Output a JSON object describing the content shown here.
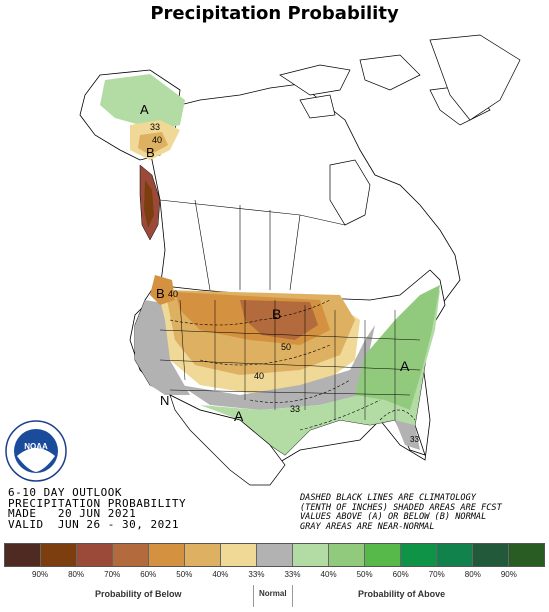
{
  "title": "Precipitation Probability",
  "outlook_lines": [
    "6-10 DAY OUTLOOK",
    "PRECIPITATION PROBABILITY",
    "MADE   20 JUN 2021",
    "VALID  JUN 26 - 30, 2021"
  ],
  "notes_lines": [
    "DASHED BLACK LINES ARE CLIMATOLOGY",
    "(TENTH OF INCHES) SHADED AREAS ARE FCST",
    "VALUES ABOVE (A) OR BELOW (B) NORMAL",
    "GRAY AREAS ARE NEAR-NORMAL"
  ],
  "logo_text": "NOAA",
  "map_labels": {
    "a_alaska": "A",
    "b_alaska": "B",
    "c33_alaska": "33",
    "c40_alaska": "40",
    "b_northwest": "B",
    "c40_northwest": "40",
    "b_plains": "B",
    "c50_plains": "50",
    "c40_plains": "40",
    "c33_south": "33",
    "n_west": "N",
    "a_southwest": "A",
    "a_east": "A",
    "c33_florida": "33"
  },
  "legend": {
    "colors": [
      "#4e2a23",
      "#7d3e0f",
      "#9b4a3a",
      "#b36a3c",
      "#d4913f",
      "#ddb062",
      "#f0d896",
      "#b2b2b2",
      "#b3dca5",
      "#92ca7d",
      "#56b94a",
      "#0f9346",
      "#12824c",
      "#21593a",
      "#295c22"
    ],
    "ticks": [
      "90%",
      "80%",
      "70%",
      "60%",
      "50%",
      "40%",
      "33%",
      "33%",
      "40%",
      "50%",
      "60%",
      "70%",
      "80%",
      "90%"
    ],
    "below_label": "Probability of Below",
    "normal_label": "Normal",
    "above_label": "Probability of Above"
  }
}
